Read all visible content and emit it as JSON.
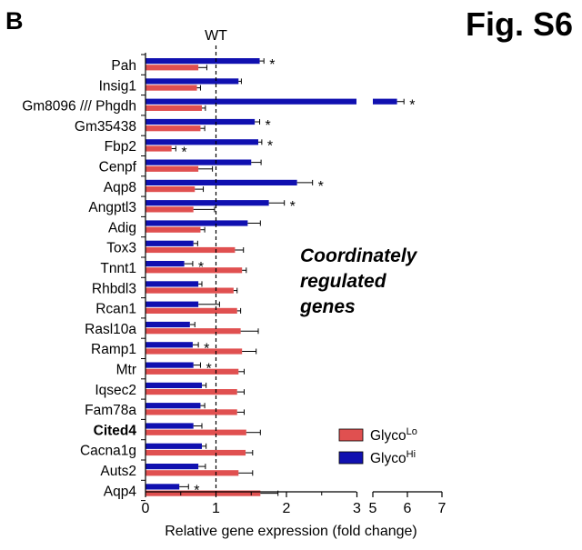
{
  "panel_label": "B",
  "figure_label": "Fig. S6",
  "annotation_lines": [
    "Coordinately",
    "regulated",
    "genes"
  ],
  "chart_data": {
    "type": "bar",
    "orientation": "horizontal",
    "title": "",
    "xlabel": "Relative gene expression (fold change)",
    "ylabel": "",
    "reference_line": {
      "value": 1,
      "label": "WT",
      "style": "dashed"
    },
    "axis_break": {
      "from": 3,
      "to": 5
    },
    "xlim": [
      0,
      7
    ],
    "x_ticks": [
      "0",
      "1",
      "2",
      "3",
      "5",
      "6",
      "7"
    ],
    "categories": [
      "Pah",
      "Insig1",
      "Gm8096 /// Phgdh",
      "Gm35438",
      "Fbp2",
      "Cenpf",
      "Aqp8",
      "Angptl3",
      "Adig",
      "Tox3",
      "Tnnt1",
      "Rhbdl3",
      "Rcan1",
      "Rasl10a",
      "Ramp1",
      "Mtr",
      "Iqsec2",
      "Fam78a",
      "Cited4",
      "Cacna1g",
      "Auts2",
      "Aqp4"
    ],
    "bold_categories": [
      "Cited4"
    ],
    "series": [
      {
        "name": "GlycoHi",
        "label_base": "Glyco",
        "label_sup": "Hi",
        "color": "#1010b0",
        "values": [
          1.62,
          1.32,
          5.7,
          1.55,
          1.6,
          1.5,
          2.15,
          1.75,
          1.45,
          0.68,
          0.55,
          0.75,
          0.75,
          0.63,
          0.67,
          0.68,
          0.8,
          0.78,
          0.68,
          0.8,
          0.75,
          0.48
        ],
        "errors": [
          0.06,
          0.04,
          0.2,
          0.07,
          0.05,
          0.14,
          0.22,
          0.22,
          0.18,
          0.06,
          0.12,
          0.05,
          0.3,
          0.07,
          0.08,
          0.1,
          0.06,
          0.06,
          0.12,
          0.06,
          0.1,
          0.13
        ],
        "significant": [
          true,
          false,
          true,
          true,
          true,
          false,
          true,
          true,
          false,
          false,
          true,
          false,
          false,
          false,
          true,
          true,
          false,
          false,
          false,
          false,
          false,
          true
        ]
      },
      {
        "name": "GlycoLo",
        "label_base": "Glyco",
        "label_sup": "Lo",
        "color": "#e05050",
        "values": [
          0.75,
          0.73,
          0.8,
          0.78,
          0.37,
          0.75,
          0.7,
          0.68,
          0.78,
          1.27,
          1.37,
          1.25,
          1.3,
          1.35,
          1.37,
          1.32,
          1.3,
          1.3,
          1.43,
          1.42,
          1.32,
          1.63
        ],
        "errors": [
          0.12,
          0.05,
          0.05,
          0.06,
          0.06,
          0.2,
          0.12,
          0.3,
          0.06,
          0.12,
          0.06,
          0.05,
          0.05,
          0.25,
          0.2,
          0.08,
          0.1,
          0.1,
          0.2,
          0.1,
          0.2,
          0.25
        ],
        "significant": [
          false,
          false,
          false,
          false,
          true,
          false,
          false,
          false,
          false,
          false,
          false,
          false,
          false,
          false,
          false,
          false,
          false,
          false,
          false,
          false,
          false,
          false
        ]
      }
    ],
    "significance_marker": "*",
    "legend": {
      "position": "bottom-right",
      "order": [
        "GlycoLo",
        "GlycoHi"
      ]
    }
  }
}
